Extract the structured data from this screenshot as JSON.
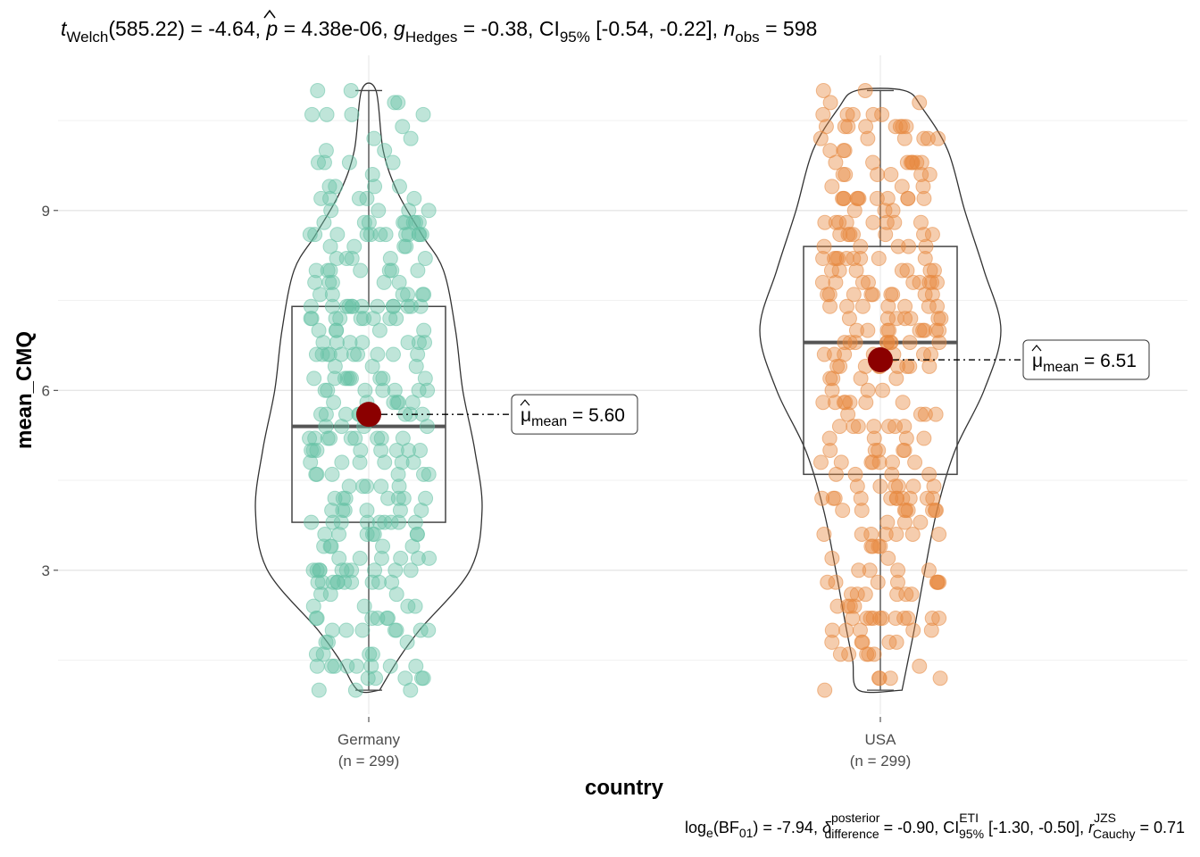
{
  "chart_data": {
    "type": "violin-box-scatter",
    "subtitle": {
      "t_label": "t",
      "t_sub": "Welch",
      "df": "(585.22)",
      "t_value": " = -4.64, ",
      "p_label": "p",
      "p_value": " = 4.38e-06, ",
      "g_label": "g",
      "g_sub": "Hedges",
      "g_value": " = -0.38, CI",
      "ci_sub": "95%",
      "ci_value": " [-0.54, -0.22], ",
      "n_label": "n",
      "n_sub": "obs",
      "n_value": " = 598"
    },
    "caption": {
      "log_label": "log",
      "log_sub": "e",
      "bf_open": "(BF",
      "bf_sub": "01",
      "bf_value": ") = -7.94, ",
      "delta_label": "δ",
      "delta_sup": "posterior",
      "delta_sub": "difference",
      "delta_value": " = -0.90, CI",
      "ci_sup": "ETI",
      "ci_sub": "95%",
      "ci_value": " [-1.30, -0.50], ",
      "r_label": "r",
      "r_sup": "JZS",
      "r_sub": "Cauchy",
      "r_value": " = 0.71"
    },
    "xlabel": "country",
    "ylabel": "mean_CMQ",
    "yticks": [
      3,
      6,
      9
    ],
    "ylim": [
      0.6,
      11.4
    ],
    "grid": true,
    "groups": [
      {
        "name": "Germany",
        "n_label": "(n = 299)",
        "color": "#66C2A5",
        "mean": 5.6,
        "mean_label_prefix": "μ",
        "mean_label_sub": "mean",
        "mean_label_value": " = 5.60",
        "box": {
          "q1": 3.8,
          "median": 5.4,
          "q3": 7.4,
          "whisker_low": 1.0,
          "whisker_high": 11.0
        },
        "violin": [
          [
            1.0,
            0.09
          ],
          [
            1.5,
            0.24
          ],
          [
            2.0,
            0.42
          ],
          [
            3.0,
            0.84
          ],
          [
            4.0,
            0.94
          ],
          [
            5.0,
            0.88
          ],
          [
            6.0,
            0.78
          ],
          [
            7.0,
            0.72
          ],
          [
            8.0,
            0.62
          ],
          [
            8.6,
            0.44
          ],
          [
            9.3,
            0.24
          ],
          [
            10.0,
            0.12
          ],
          [
            11.0,
            0.06
          ]
        ],
        "density": [
          [
            1,
            0.4
          ],
          [
            2,
            0.6
          ],
          [
            3,
            1.0
          ],
          [
            4,
            1.0
          ],
          [
            5,
            1.0
          ],
          [
            6,
            1.0
          ],
          [
            7,
            0.95
          ],
          [
            8,
            0.9
          ],
          [
            9,
            0.55
          ],
          [
            10,
            0.3
          ],
          [
            11,
            0.12
          ]
        ]
      },
      {
        "name": "USA",
        "n_label": "(n = 299)",
        "color": "#E6893F",
        "mean": 6.51,
        "mean_label_prefix": "μ",
        "mean_label_sub": "mean",
        "mean_label_value": " = 6.51",
        "box": {
          "q1": 4.6,
          "median": 6.8,
          "q3": 8.4,
          "whisker_low": 1.0,
          "whisker_high": 11.0
        },
        "violin": [
          [
            1.0,
            0.18
          ],
          [
            1.5,
            0.23
          ],
          [
            2.0,
            0.28
          ],
          [
            3.0,
            0.37
          ],
          [
            4.0,
            0.47
          ],
          [
            5.0,
            0.62
          ],
          [
            6.0,
            0.86
          ],
          [
            7.0,
            1.0
          ],
          [
            8.0,
            0.86
          ],
          [
            9.0,
            0.7
          ],
          [
            10.0,
            0.56
          ],
          [
            10.7,
            0.35
          ],
          [
            11.0,
            0.2
          ]
        ],
        "density": [
          [
            1,
            0.55
          ],
          [
            2,
            0.55
          ],
          [
            3,
            0.6
          ],
          [
            4,
            0.7
          ],
          [
            5,
            0.85
          ],
          [
            6,
            1.0
          ],
          [
            7,
            1.0
          ],
          [
            8,
            1.0
          ],
          [
            9,
            0.95
          ],
          [
            10,
            0.8
          ],
          [
            11,
            0.55
          ]
        ]
      }
    ]
  }
}
